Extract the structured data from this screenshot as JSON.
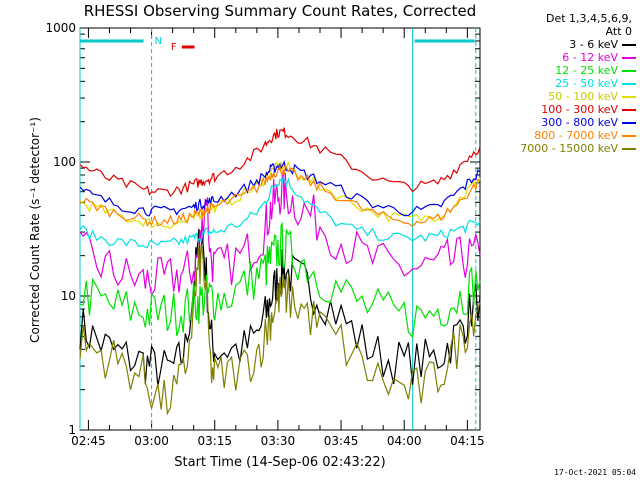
{
  "chart_data": {
    "type": "line",
    "title": "RHESSI Observing Summary Count Rates, Corrected",
    "xlabel": "Start Time (14-Sep-06 02:43:22)",
    "ylabel": "Corrected Count Rate (s⁻¹ detector⁻¹)",
    "yscale": "log",
    "ylim": [
      1,
      1000
    ],
    "yticks": [
      {
        "value": 1,
        "label": "1"
      },
      {
        "value": 10,
        "label": "10"
      },
      {
        "value": 100,
        "label": "100"
      },
      {
        "value": 1000,
        "label": "1000"
      }
    ],
    "xlim_min": [
      163,
      258
    ],
    "xticks": [
      {
        "value": 165,
        "label": "02:45"
      },
      {
        "value": 180,
        "label": "03:00"
      },
      {
        "value": 195,
        "label": "03:15"
      },
      {
        "value": 210,
        "label": "03:30"
      },
      {
        "value": 225,
        "label": "03:45"
      },
      {
        "value": 240,
        "label": "04:00"
      },
      {
        "value": 255,
        "label": "04:15"
      }
    ],
    "legend_header": [
      "Det 1,3,4,5,6,9,",
      "Att 0"
    ],
    "legend_position": "right",
    "x_minutes": [
      163,
      166,
      170,
      174,
      178,
      180,
      183,
      186,
      188,
      190,
      191,
      192,
      193,
      194,
      195,
      198,
      202,
      205,
      207,
      208,
      209,
      210,
      211,
      212,
      214,
      217,
      220,
      225,
      230,
      235,
      240,
      244,
      248,
      251,
      254,
      256,
      258
    ],
    "series": [
      {
        "name": "3 - 6 keV",
        "color": "#000000",
        "values": [
          6,
          5,
          4,
          3.5,
          3.2,
          3,
          2.8,
          3,
          4,
          12,
          22,
          28,
          14,
          5,
          4,
          4,
          4,
          5,
          7,
          9,
          11,
          13,
          15,
          15,
          14,
          12,
          10,
          7,
          4.5,
          3.4,
          3.2,
          3.2,
          3.5,
          4.5,
          6,
          8,
          10
        ]
      },
      {
        "name": "6 - 12 keV",
        "color": "#e000e0",
        "values": [
          22,
          18,
          16,
          14,
          13,
          13,
          13,
          14,
          15,
          16,
          20,
          32,
          60,
          20,
          16,
          17,
          20,
          25,
          32,
          42,
          50,
          56,
          60,
          58,
          50,
          42,
          35,
          26,
          20,
          17,
          16,
          16,
          17,
          18,
          19,
          20,
          20
        ]
      },
      {
        "name": "12 - 25 keV",
        "color": "#00e000",
        "values": [
          11,
          9.5,
          8.5,
          8,
          7.5,
          7.5,
          7.5,
          7.5,
          8,
          9,
          9,
          9.5,
          10,
          10,
          9.5,
          10,
          12,
          14,
          16,
          18,
          20,
          22,
          24,
          22,
          20,
          17,
          14,
          11,
          8.5,
          7.5,
          7,
          7,
          8,
          9,
          10,
          12,
          13
        ]
      },
      {
        "name": "25 - 50 keV",
        "color": "#00e0e0",
        "values": [
          32,
          28,
          26,
          25,
          24,
          24,
          24,
          25,
          26,
          27,
          28,
          28,
          30,
          30,
          30,
          32,
          36,
          42,
          50,
          58,
          66,
          72,
          76,
          72,
          62,
          50,
          42,
          34,
          30,
          28,
          27,
          27,
          28,
          30,
          32,
          34,
          36
        ]
      },
      {
        "name": "50 - 100 keV",
        "color": "#e0e000",
        "values": [
          50,
          46,
          42,
          38,
          36,
          35,
          34,
          35,
          36,
          38,
          40,
          42,
          44,
          45,
          46,
          50,
          58,
          66,
          75,
          82,
          88,
          92,
          94,
          92,
          85,
          75,
          66,
          55,
          46,
          40,
          38,
          38,
          40,
          46,
          56,
          66,
          76
        ]
      },
      {
        "name": "100 - 300 keV",
        "color": "#e00000",
        "values": [
          95,
          85,
          75,
          68,
          62,
          60,
          60,
          62,
          64,
          68,
          70,
          72,
          74,
          76,
          78,
          86,
          100,
          118,
          136,
          148,
          158,
          165,
          168,
          165,
          155,
          140,
          125,
          105,
          85,
          72,
          66,
          66,
          70,
          82,
          100,
          115,
          130
        ]
      },
      {
        "name": "300 - 800 keV",
        "color": "#0000e0",
        "values": [
          62,
          56,
          50,
          46,
          44,
          43,
          43,
          44,
          45,
          46,
          48,
          49,
          50,
          51,
          52,
          56,
          63,
          72,
          80,
          86,
          90,
          93,
          95,
          93,
          88,
          80,
          72,
          62,
          52,
          46,
          43,
          43,
          46,
          54,
          64,
          74,
          84
        ]
      },
      {
        "name": "800 - 7000 keV",
        "color": "#ff8000",
        "values": [
          52,
          48,
          43,
          40,
          37,
          36,
          36,
          37,
          38,
          40,
          41,
          42,
          44,
          45,
          46,
          50,
          56,
          64,
          72,
          78,
          83,
          86,
          88,
          86,
          80,
          72,
          64,
          54,
          45,
          39,
          36,
          36,
          38,
          44,
          53,
          63,
          72
        ]
      },
      {
        "name": "7000 - 15000 keV",
        "color": "#808000",
        "values": [
          4.5,
          4,
          3.5,
          3,
          2.5,
          2,
          1.6,
          2,
          2.8,
          8,
          15,
          20,
          10,
          3,
          2.5,
          2.6,
          3,
          3.8,
          5,
          6.5,
          8,
          9.5,
          10.5,
          10,
          9,
          7.5,
          6,
          4.5,
          3,
          2.3,
          2,
          2,
          2.5,
          3.5,
          5,
          7,
          9
        ]
      }
    ],
    "annotations": {
      "N": {
        "label": "N",
        "color": "#00c8c8",
        "x_start": 163,
        "x_end": 180
      },
      "F": {
        "label": "F",
        "color": "#e00000",
        "x_start": 186,
        "x_end": 189
      },
      "N2": {
        "label": "",
        "color": "#00c8c8",
        "x_start": 242,
        "x_end": 257
      }
    },
    "vlines_solid": [
      163,
      242
    ],
    "vlines_dashed": [
      180,
      257
    ]
  },
  "timestamp": "17-Oct-2021 05:04"
}
